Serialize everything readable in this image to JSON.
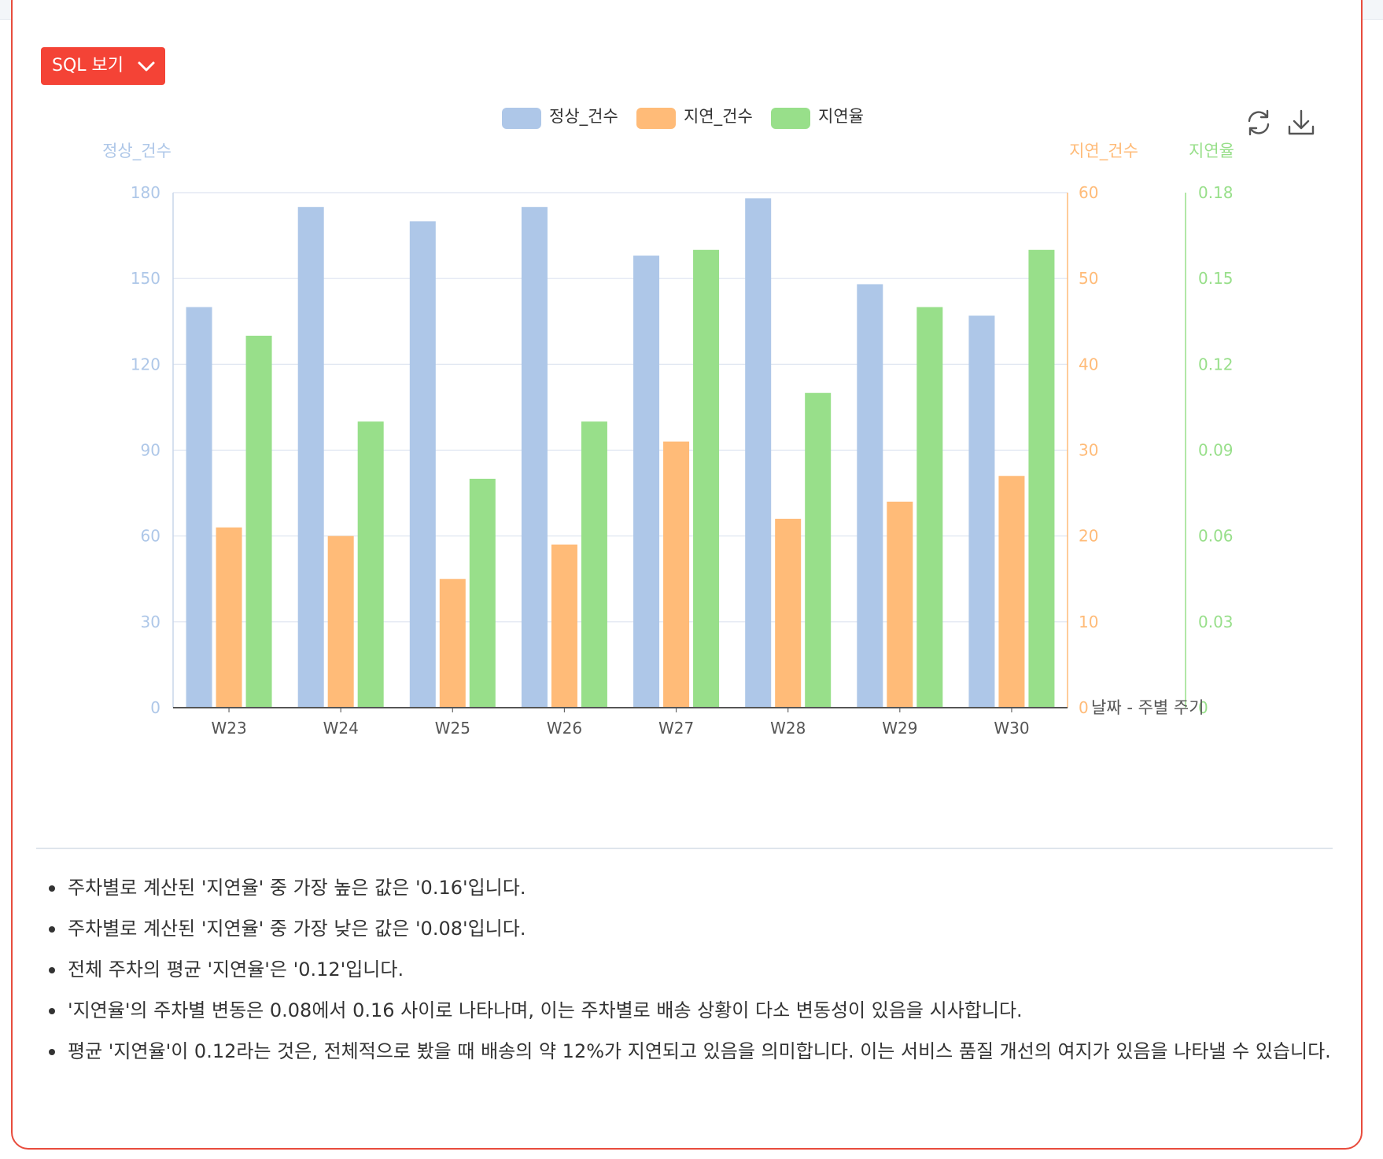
{
  "toolbar": {
    "sql_button_label": "SQL 보기"
  },
  "icons": {
    "sql_toggle": "chevron-down-icon",
    "refresh": "refresh-icon",
    "download": "download-icon"
  },
  "colors": {
    "normal": "#aec7e8",
    "delay": "#ffbb78",
    "rate": "#98df8a",
    "accent": "#f44336"
  },
  "chart_data": {
    "type": "bar",
    "categories": [
      "W23",
      "W24",
      "W25",
      "W26",
      "W27",
      "W28",
      "W29",
      "W30"
    ],
    "xlabel": "날짜 - 주별 주기",
    "series": [
      {
        "name": "정상_건수",
        "axis": "left",
        "color": "#aec7e8",
        "values": [
          140,
          175,
          170,
          175,
          158,
          178,
          148,
          137
        ]
      },
      {
        "name": "지연_건수",
        "axis": "right1",
        "color": "#ffbb78",
        "values": [
          21,
          20,
          15,
          19,
          31,
          22,
          24,
          27
        ]
      },
      {
        "name": "지연율",
        "axis": "right2",
        "color": "#98df8a",
        "values": [
          0.13,
          0.1,
          0.08,
          0.1,
          0.16,
          0.11,
          0.14,
          0.16
        ]
      }
    ],
    "axes": {
      "left": {
        "label": "정상_건수",
        "min": 0,
        "max": 180,
        "ticks": [
          "0",
          "30",
          "60",
          "90",
          "120",
          "150",
          "180"
        ],
        "color": "#aec7e8"
      },
      "right1": {
        "label": "지연_건수",
        "min": 0,
        "max": 60,
        "ticks": [
          "0",
          "10",
          "20",
          "30",
          "40",
          "50",
          "60"
        ],
        "color": "#ffbb78"
      },
      "right2": {
        "label": "지연율",
        "min": 0,
        "max": 0.18,
        "ticks": [
          "0",
          "0.03",
          "0.06",
          "0.09",
          "0.12",
          "0.15",
          "0.18"
        ],
        "color": "#98df8a"
      }
    },
    "grid": true,
    "legend": "top-center"
  },
  "insights": [
    "주차별로 계산된 '지연율' 중 가장 높은 값은 '0.16'입니다.",
    "주차별로 계산된 '지연율' 중 가장 낮은 값은 '0.08'입니다.",
    "전체 주차의 평균 '지연율'은 '0.12'입니다.",
    "'지연율'의 주차별 변동은 0.08에서 0.16 사이로 나타나며, 이는 주차별로 배송 상황이 다소 변동성이 있음을 시사합니다.",
    "평균 '지연율'이 0.12라는 것은, 전체적으로 봤을 때 배송의 약 12%가 지연되고 있음을 의미합니다. 이는 서비스 품질 개선의 여지가 있음을 나타낼 수 있습니다."
  ]
}
